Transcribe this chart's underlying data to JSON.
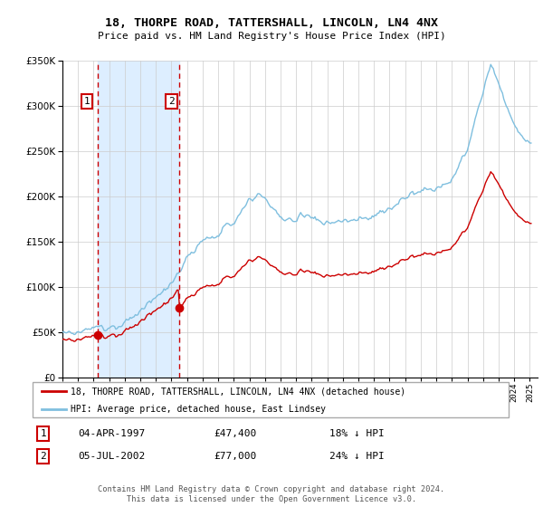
{
  "title": "18, THORPE ROAD, TATTERSHALL, LINCOLN, LN4 4NX",
  "subtitle": "Price paid vs. HM Land Registry's House Price Index (HPI)",
  "legend_line1": "18, THORPE ROAD, TATTERSHALL, LINCOLN, LN4 4NX (detached house)",
  "legend_line2": "HPI: Average price, detached house, East Lindsey",
  "transaction1_date": "04-APR-1997",
  "transaction1_price": 47400,
  "transaction1_note": "18% ↓ HPI",
  "transaction2_date": "05-JUL-2002",
  "transaction2_price": 77000,
  "transaction2_note": "24% ↓ HPI",
  "footer": "Contains HM Land Registry data © Crown copyright and database right 2024.\nThis data is licensed under the Open Government Licence v3.0.",
  "hpi_color": "#7fbfdf",
  "price_color": "#cc0000",
  "marker_color": "#cc0000",
  "dashed_line_color": "#cc0000",
  "highlight_color": "#ddeeff",
  "transaction1_x": 1997.25,
  "transaction2_x": 2002.5,
  "ylim_min": 0,
  "ylim_max": 350000,
  "xlim_min": 1995.0,
  "xlim_max": 2025.5,
  "background_color": "#ffffff",
  "grid_color": "#cccccc"
}
